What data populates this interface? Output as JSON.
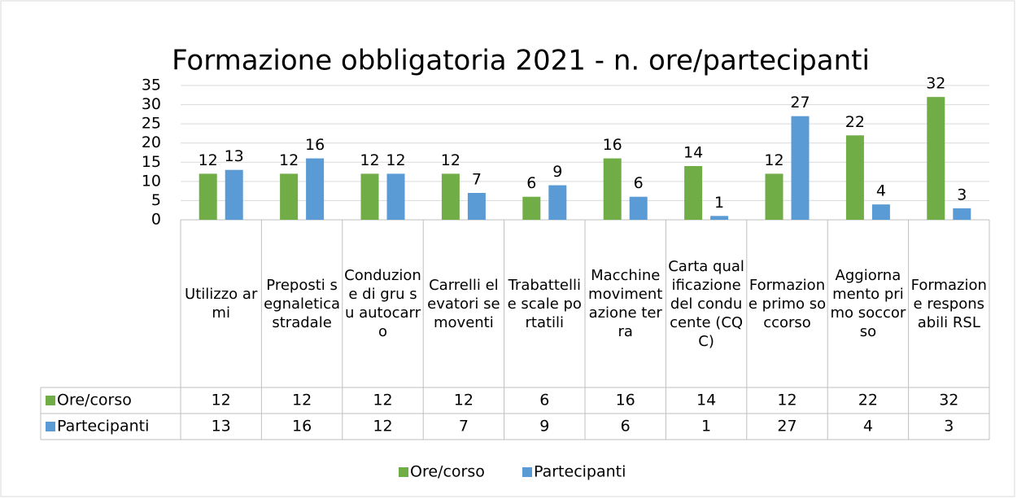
{
  "chart_data": {
    "type": "bar",
    "title": "Formazione obbligatoria 2021 - n. ore/partecipanti",
    "categories": [
      "Utilizzo armi",
      "Preposti segnaletica stradale",
      "Conduzione di gru su autocarro",
      "Carrelli elevatori semoventi",
      "Trabattelli e scale portatili",
      "Macchine movimentazione terra",
      "Carta qualificazione del conducente (CQC)",
      "Formazione primo soccorso",
      "Aggiornamento primo soccorso",
      "Formazione responsabili RSL"
    ],
    "series": [
      {
        "name": "Ore/corso",
        "color": "#70ad47",
        "values": [
          12,
          12,
          12,
          12,
          6,
          16,
          14,
          12,
          22,
          32
        ]
      },
      {
        "name": "Partecipanti",
        "color": "#5b9bd5",
        "values": [
          13,
          16,
          12,
          7,
          9,
          6,
          1,
          27,
          4,
          3
        ]
      }
    ],
    "ylim": [
      0,
      35
    ],
    "yticks": [
      0,
      5,
      10,
      15,
      20,
      25,
      30,
      35
    ],
    "grid": true,
    "legend": "bottom",
    "data_table": true
  }
}
